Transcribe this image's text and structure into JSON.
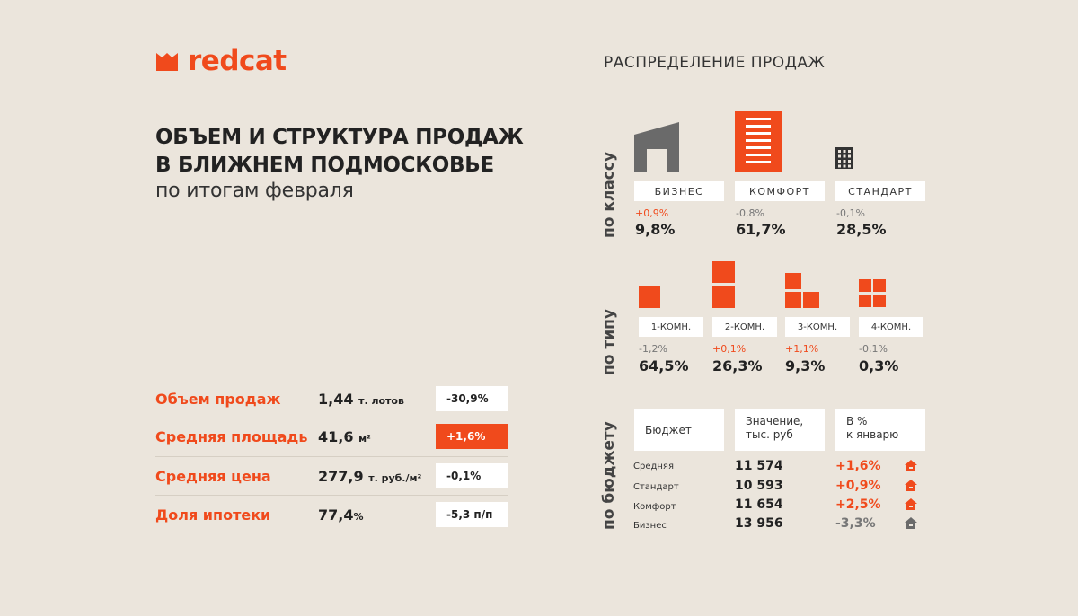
{
  "brand": {
    "name": "redcat",
    "accent": "#f04a1c"
  },
  "header": {
    "title_line1": "ОБЪЕМ И СТРУКТУРА ПРОДАЖ",
    "title_line2": "В БЛИЖНЕМ ПОДМОСКОВЬЕ",
    "subtitle": "по итогам февраля"
  },
  "metrics": [
    {
      "label": "Объем продаж",
      "value": "1,44",
      "unit": "т. лотов",
      "change": "-30,9%",
      "highlight": false
    },
    {
      "label": "Средняя площадь",
      "value": "41,6",
      "unit": "м²",
      "change": "+1,6%",
      "highlight": true
    },
    {
      "label": "Средняя цена",
      "value": "277,9",
      "unit": "т. руб./м²",
      "change": "-0,1%",
      "highlight": false
    },
    {
      "label": "Доля ипотеки",
      "value": "77,4",
      "unit": "%",
      "change": "-5,3 п/п",
      "highlight": false
    }
  ],
  "distribution": {
    "title": "РАСПРЕДЕЛЕНИЕ ПРОДАЖ",
    "by_class": {
      "label": "по классу",
      "items": [
        {
          "name": "БИЗНЕС",
          "delta": "+0,9%",
          "value": "9,8%"
        },
        {
          "name": "КОМФОРТ",
          "delta": "-0,8%",
          "value": "61,7%"
        },
        {
          "name": "СТАНДАРТ",
          "delta": "-0,1%",
          "value": "28,5%"
        }
      ]
    },
    "by_type": {
      "label": "по типу",
      "items": [
        {
          "name": "1-КОМН.",
          "delta": "-1,2%",
          "value": "64,5%"
        },
        {
          "name": "2-КОМН.",
          "delta": "+0,1%",
          "value": "26,3%"
        },
        {
          "name": "3-КОМН.",
          "delta": "+1,1%",
          "value": "9,3%"
        },
        {
          "name": "4-КОМН.",
          "delta": "-0,1%",
          "value": "0,3%"
        }
      ]
    },
    "by_budget": {
      "label": "по бюджету",
      "headers": {
        "col1": "Бюджет",
        "col2_line1": "Значение,",
        "col2_line2": "тыс. руб",
        "col3_line1": "В %",
        "col3_line2": "к январю"
      },
      "rows": [
        {
          "name": "Средняя",
          "value": "11 574",
          "change": "+1,6%",
          "trend": "up"
        },
        {
          "name": "Стандарт",
          "value": "10 593",
          "change": "+0,9%",
          "trend": "up"
        },
        {
          "name": "Комфорт",
          "value": "11 654",
          "change": "+2,5%",
          "trend": "up"
        },
        {
          "name": "Бизнес",
          "value": "13 956",
          "change": "-3,3%",
          "trend": "down"
        }
      ]
    }
  }
}
